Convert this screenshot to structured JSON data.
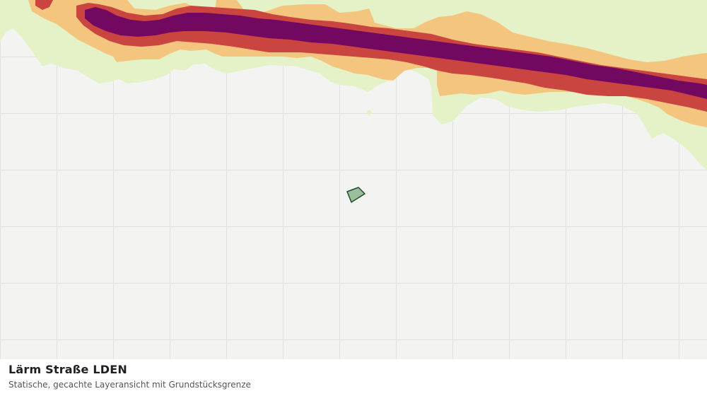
{
  "map": {
    "layer_title": "Lärm Straße LDEN",
    "layer_subtitle": "Statische, gecachte Layeransicht mit Grundstücksgrenze",
    "colors": {
      "background": "#f3f4f2",
      "grid": "#dfe1de",
      "noise_low": "#e5f2c7",
      "noise_mid": "#f4c57f",
      "noise_high": "#cb4540",
      "noise_very_high": "#730860",
      "parcel_fill": "#9cbf9b",
      "parcel_stroke": "#1f4a30"
    }
  }
}
